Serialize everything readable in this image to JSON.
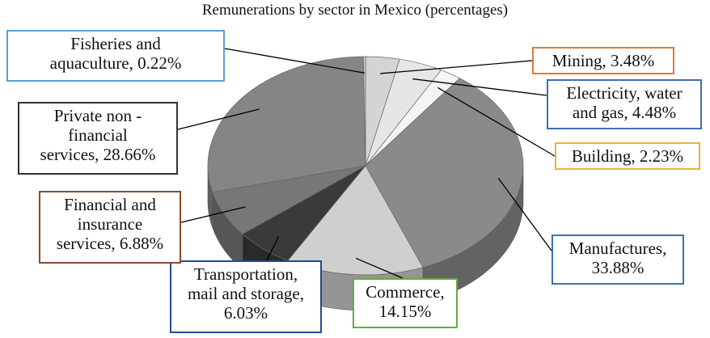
{
  "chart_data": {
    "type": "pie",
    "title": "Remunerations by sector in Mexico (percentages)",
    "slices": [
      {
        "name": "Mining",
        "value": 3.48,
        "label_lines": [
          "Mining, 3.48%"
        ],
        "color": "#d4d4d4",
        "border": "#e07a3a"
      },
      {
        "name": "Electricity, water and gas",
        "value": 4.48,
        "label_lines": [
          "Electricity, water",
          "and gas, 4.48%"
        ],
        "color": "#e6e6e6",
        "border": "#3f6fb0"
      },
      {
        "name": "Building",
        "value": 2.23,
        "label_lines": [
          "Building, 2.23%"
        ],
        "color": "#f4f4f4",
        "border": "#f2b233"
      },
      {
        "name": "Manufactures",
        "value": 33.88,
        "label_lines": [
          "Manufactures,",
          "33.88%"
        ],
        "color": "#8a8a8a",
        "border": "#3f6fb0"
      },
      {
        "name": "Commerce",
        "value": 14.15,
        "label_lines": [
          "Commerce,",
          "14.15%"
        ],
        "color": "#cfcfcf",
        "border": "#5fae4a"
      },
      {
        "name": "Transportation, mail and storage",
        "value": 6.03,
        "label_lines": [
          "Transportation,",
          "mail and storage,",
          "6.03%"
        ],
        "color": "#3a3a3a",
        "border": "#1f4e8c"
      },
      {
        "name": "Financial and insurance services",
        "value": 6.88,
        "label_lines": [
          "Financial and",
          "insurance",
          "services, 6.88%"
        ],
        "color": "#777777",
        "border": "#8a4a2a"
      },
      {
        "name": "Private non - financial services",
        "value": 28.66,
        "label_lines": [
          "Private non -",
          "financial",
          "services, 28.66%"
        ],
        "color": "#858585",
        "border": "#333333"
      },
      {
        "name": "Fisheries and aquaculture",
        "value": 0.22,
        "label_lines": [
          "Fisheries and",
          "aquaculture, 0.22%"
        ],
        "color": "#cccccc",
        "border": "#5a9fd6"
      }
    ]
  }
}
